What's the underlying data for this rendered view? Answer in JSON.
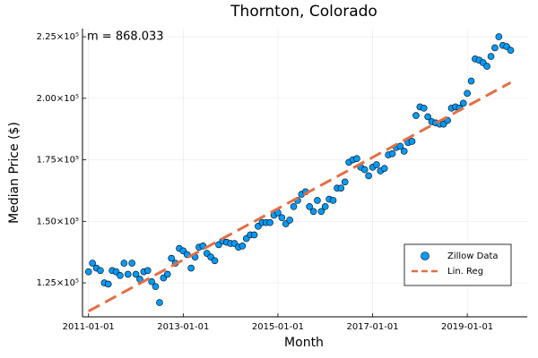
{
  "chart_data": {
    "type": "scatter",
    "title": "Thornton, Colorado",
    "xlabel": "Month",
    "ylabel": "Median Price ($)",
    "annotation": "m = 868.033",
    "xlim": [
      "2010-11-15",
      "2020-04-07"
    ],
    "xticks": [
      "2011-01-01",
      "2013-01-01",
      "2015-01-01",
      "2017-01-01",
      "2019-01-01"
    ],
    "ylim": [
      111200,
      228300
    ],
    "yticks": [
      {
        "value": 125000,
        "label": "1.25×10⁵"
      },
      {
        "value": 150000,
        "label": "1.50×10⁵"
      },
      {
        "value": 175000,
        "label": "1.75×10⁵"
      },
      {
        "value": 200000,
        "label": "2.00×10⁵"
      },
      {
        "value": 225000,
        "label": "2.25×10⁵"
      }
    ],
    "grid": true,
    "legend": "bottom right",
    "series": [
      {
        "name": "Zillow Data",
        "color": "#009af9",
        "mode": "markers",
        "x": [
          "2011-01-01",
          "2011-02-01",
          "2011-03-01",
          "2011-04-01",
          "2011-05-01",
          "2011-06-01",
          "2011-07-01",
          "2011-08-01",
          "2011-09-01",
          "2011-10-01",
          "2011-11-01",
          "2011-12-01",
          "2012-01-01",
          "2012-02-01",
          "2012-03-01",
          "2012-04-01",
          "2012-05-01",
          "2012-06-01",
          "2012-07-01",
          "2012-08-01",
          "2012-09-01",
          "2012-10-01",
          "2012-11-01",
          "2012-12-01",
          "2013-01-01",
          "2013-02-01",
          "2013-03-01",
          "2013-04-01",
          "2013-05-01",
          "2013-06-01",
          "2013-07-01",
          "2013-08-01",
          "2013-09-01",
          "2013-10-01",
          "2013-11-01",
          "2013-12-01",
          "2014-01-01",
          "2014-02-01",
          "2014-03-01",
          "2014-04-01",
          "2014-05-01",
          "2014-06-01",
          "2014-07-01",
          "2014-08-01",
          "2014-09-01",
          "2014-10-01",
          "2014-11-01",
          "2014-12-01",
          "2015-01-01",
          "2015-02-01",
          "2015-03-01",
          "2015-04-01",
          "2015-05-01",
          "2015-06-01",
          "2015-07-01",
          "2015-08-01",
          "2015-09-01",
          "2015-10-01",
          "2015-11-01",
          "2015-12-01",
          "2016-01-01",
          "2016-02-01",
          "2016-03-01",
          "2016-04-01",
          "2016-05-01",
          "2016-06-01",
          "2016-07-01",
          "2016-08-01",
          "2016-09-01",
          "2016-10-01",
          "2016-11-01",
          "2016-12-01",
          "2017-01-01",
          "2017-02-01",
          "2017-03-01",
          "2017-04-01",
          "2017-05-01",
          "2017-06-01",
          "2017-07-01",
          "2017-08-01",
          "2017-09-01",
          "2017-10-01",
          "2017-11-01",
          "2017-12-01",
          "2018-01-01",
          "2018-02-01",
          "2018-03-01",
          "2018-04-01",
          "2018-05-01",
          "2018-06-01",
          "2018-07-01",
          "2018-08-01",
          "2018-09-01",
          "2018-10-01",
          "2018-11-01",
          "2018-12-01",
          "2019-01-01",
          "2019-02-01",
          "2019-03-01",
          "2019-04-01",
          "2019-05-01",
          "2019-06-01",
          "2019-07-01",
          "2019-08-01",
          "2019-09-01",
          "2019-10-01",
          "2019-11-01",
          "2019-12-01"
        ],
        "values": [
          129500,
          133000,
          131000,
          130000,
          125000,
          124500,
          130000,
          129500,
          128000,
          133000,
          128500,
          133000,
          128500,
          126500,
          129500,
          130000,
          125500,
          123500,
          117000,
          127000,
          128500,
          135000,
          133000,
          139000,
          138000,
          136500,
          131000,
          135500,
          139500,
          140000,
          137000,
          135500,
          134000,
          140500,
          142000,
          141500,
          141000,
          141000,
          139500,
          140000,
          143000,
          144500,
          144500,
          148000,
          149500,
          149500,
          149500,
          152500,
          153500,
          151500,
          149000,
          150500,
          156000,
          158500,
          161000,
          162000,
          156000,
          154000,
          158500,
          154000,
          156000,
          159000,
          158500,
          163500,
          163500,
          166000,
          174000,
          175000,
          175500,
          172000,
          171000,
          168500,
          172000,
          173000,
          170500,
          171500,
          177000,
          177500,
          180000,
          180500,
          178500,
          182000,
          182500,
          193000,
          196500,
          196000,
          192500,
          190500,
          190000,
          189500,
          189500,
          191000,
          196000,
          196500,
          196000,
          198000,
          202000,
          207000,
          216000,
          215500,
          214500,
          213000,
          217000,
          220500,
          225000,
          221500,
          221000,
          219500
        ]
      },
      {
        "name": "Lin. Reg",
        "color": "#e26f46",
        "mode": "line",
        "line_style": "dash",
        "x": [
          "2011-01-01",
          "2019-12-01"
        ],
        "values": [
          113500,
          206400
        ]
      }
    ]
  }
}
